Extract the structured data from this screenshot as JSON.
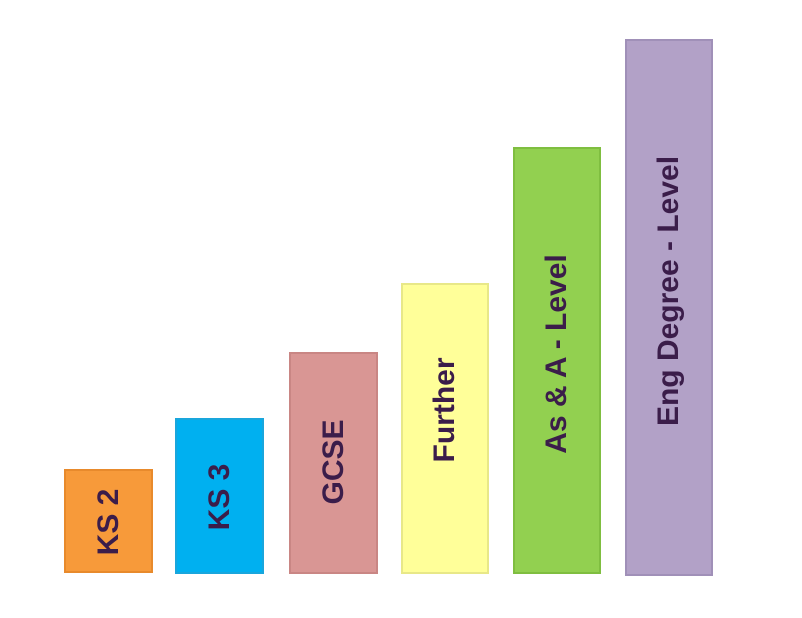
{
  "bars": [
    {
      "label": "KS 2"
    },
    {
      "label": "KS 3"
    },
    {
      "label": "GCSE"
    },
    {
      "label": "Further"
    },
    {
      "label": "As & A - Level"
    },
    {
      "label": "Eng Degree - Level"
    }
  ]
}
